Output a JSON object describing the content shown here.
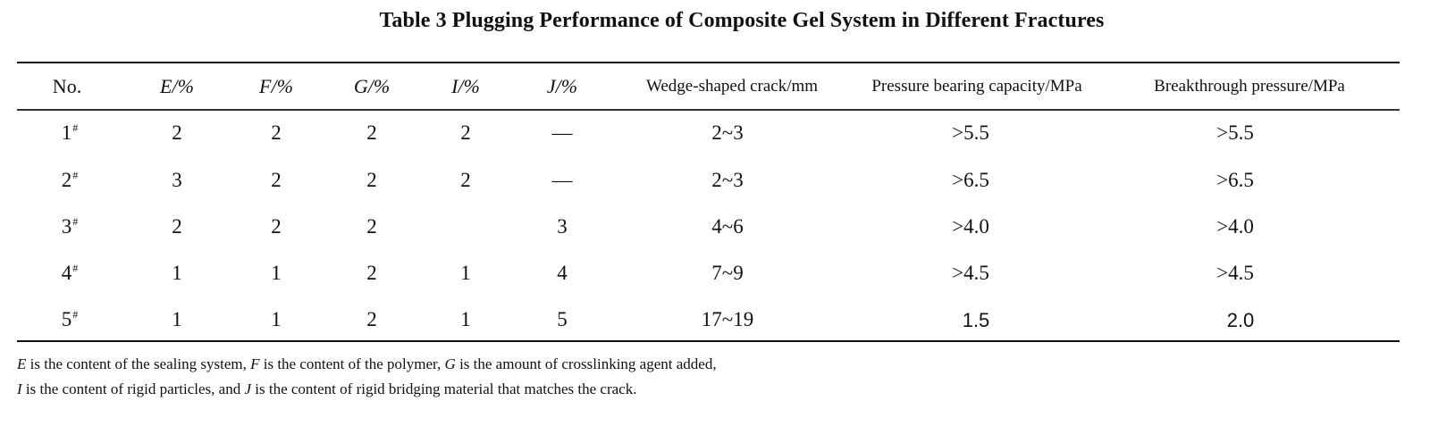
{
  "caption": "Table 3 Plugging Performance of Composite Gel System in Different Fractures",
  "headers": {
    "no": "No.",
    "e": "E/%",
    "f": "F/%",
    "g": "G/%",
    "i": "I/%",
    "j": "J/%",
    "crack": "Wedge-shaped crack/mm",
    "bearing": "Pressure bearing capacity/MPa",
    "breakthrough": "Breakthrough pressure/MPa"
  },
  "rows": [
    {
      "no": "1",
      "mark": "#",
      "e": "2",
      "f": "2",
      "g": "2",
      "i": "2",
      "j": "—",
      "crack": "2~3",
      "bearing": ">5.5",
      "breakthrough": ">5.5"
    },
    {
      "no": "2",
      "mark": "#",
      "e": "3",
      "f": "2",
      "g": "2",
      "i": "2",
      "j": "—",
      "crack": "2~3",
      "bearing": ">6.5",
      "breakthrough": ">6.5"
    },
    {
      "no": "3",
      "mark": "#",
      "e": "2",
      "f": "2",
      "g": "2",
      "i": "",
      "j": "3",
      "crack": "4~6",
      "bearing": ">4.0",
      "breakthrough": ">4.0"
    },
    {
      "no": "4",
      "mark": "#",
      "e": "1",
      "f": "1",
      "g": "2",
      "i": "1",
      "j": "4",
      "crack": "7~9",
      "bearing": ">4.5",
      "breakthrough": ">4.5"
    },
    {
      "no": "5",
      "mark": "#",
      "e": "1",
      "f": "1",
      "g": "2",
      "i": "1",
      "j": "5",
      "crack": "17~19",
      "bearing": "1.5",
      "breakthrough": "2.0"
    }
  ],
  "footnote": {
    "line1": {
      "e": "E",
      "e_text": " is the content of the sealing system, ",
      "f": "F",
      "f_text": " is the content of the polymer, ",
      "g": "G",
      "g_text": " is the amount of crosslinking agent added,"
    },
    "line2": {
      "i": "I",
      "i_text": " is the content of rigid particles, and ",
      "j": "J",
      "j_text": " is the content of rigid bridging material that matches the crack."
    }
  }
}
